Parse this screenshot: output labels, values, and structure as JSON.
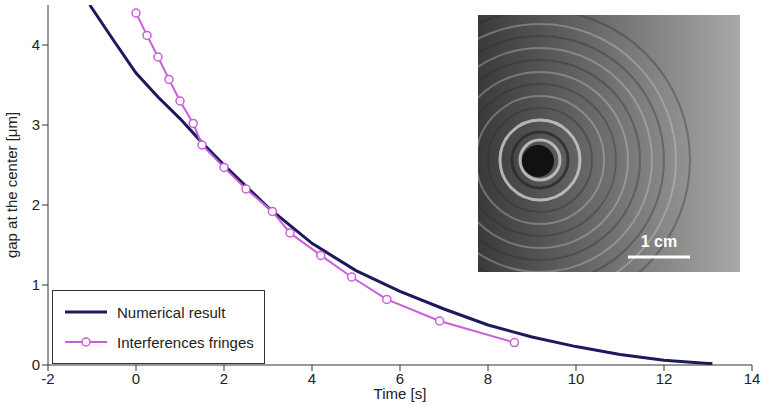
{
  "chart_data": {
    "type": "line",
    "x_label": "Time [s]",
    "y_label": "gap at the center [μm]",
    "xlim": [
      -2,
      14
    ],
    "xticks": [
      -2,
      0,
      2,
      4,
      6,
      8,
      10,
      12,
      14
    ],
    "ylim": [
      0,
      4.5
    ],
    "yticks": [
      0,
      1,
      2,
      3,
      4
    ],
    "grid": false,
    "legend": "lower left",
    "annotations": [
      "1 cm"
    ],
    "series": [
      {
        "name": "Numerical result",
        "color": "#1c1a5e",
        "marker": "none",
        "line_style": "solid",
        "x": [
          -1.05,
          -0.5,
          0,
          0.5,
          1,
          1.5,
          2,
          3,
          4,
          5,
          6,
          7,
          8,
          9,
          10,
          11,
          12,
          13,
          13.1
        ],
        "values": [
          4.5,
          4.05,
          3.65,
          3.35,
          3.08,
          2.78,
          2.5,
          1.97,
          1.52,
          1.18,
          0.92,
          0.7,
          0.5,
          0.35,
          0.23,
          0.13,
          0.06,
          0.02,
          0.02
        ]
      },
      {
        "name": "Interferences fringes",
        "color": "#c95fdc",
        "marker": "circle",
        "line_style": "solid",
        "x": [
          0,
          0.25,
          0.5,
          0.75,
          1.0,
          1.3,
          1.5,
          2.0,
          2.5,
          3.1,
          3.5,
          4.2,
          4.9,
          5.7,
          6.9,
          8.6
        ],
        "values": [
          4.4,
          4.12,
          3.85,
          3.57,
          3.3,
          3.02,
          2.75,
          2.47,
          2.2,
          1.92,
          1.65,
          1.37,
          1.1,
          0.82,
          0.55,
          0.28
        ]
      }
    ]
  }
}
